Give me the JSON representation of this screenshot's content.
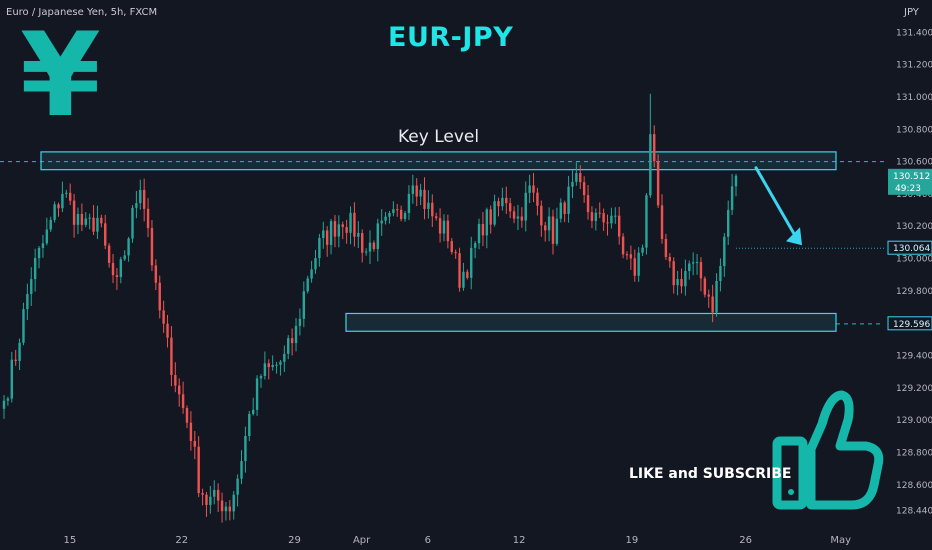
{
  "header": {
    "symbol": "Euro / Japanese Yen, 5h, FXCM",
    "currency": "JPY"
  },
  "annotations": {
    "title": "EUR-JPY",
    "key_level": "Key Level",
    "like": "LIKE and SUBSCRIBE",
    "yen_symbol": "¥"
  },
  "icons": [
    "yen-icon",
    "thumbs-up-icon",
    "arrow-down-right-icon"
  ],
  "colors": {
    "background": "#131722",
    "up": "#26a69a",
    "down": "#ef5350",
    "accent": "#1ee6e6",
    "icon": "#15b7ab",
    "zone_stroke": "#3ad5f0"
  },
  "chart_data": {
    "type": "candlestick",
    "title": "EUR-JPY",
    "ylim": [
      128.32,
      131.6
    ],
    "y_ticks": [
      "131.400",
      "131.200",
      "131.000",
      "130.800",
      "130.600",
      "130.400",
      "130.200",
      "130.000",
      "129.800",
      "129.600",
      "129.400",
      "129.200",
      "129.000",
      "128.800",
      "128.600",
      "128.440"
    ],
    "x_ticks": [
      {
        "label": "15",
        "pos": 0.075
      },
      {
        "label": "22",
        "pos": 0.195
      },
      {
        "label": "29",
        "pos": 0.316
      },
      {
        "label": "Apr",
        "pos": 0.388
      },
      {
        "label": "6",
        "pos": 0.459
      },
      {
        "label": "12",
        "pos": 0.557
      },
      {
        "label": "19",
        "pos": 0.678
      },
      {
        "label": "26",
        "pos": 0.8
      },
      {
        "label": "May",
        "pos": 0.902
      }
    ],
    "price_labels": [
      {
        "label": "130.512",
        "sub": "49:23",
        "value": 130.512,
        "kind": "current"
      },
      {
        "label": "130.064",
        "value": 130.064,
        "kind": "target"
      },
      {
        "label": "129.596",
        "value": 129.596,
        "kind": "support"
      }
    ],
    "zones": [
      {
        "name": "resistance",
        "from": 130.55,
        "to": 130.66
      },
      {
        "name": "support",
        "from": 129.55,
        "to": 129.66
      }
    ],
    "arrow": {
      "from": 130.5,
      "to": 130.07
    },
    "anchors": [
      [
        0,
        129.12
      ],
      [
        3,
        129.4
      ],
      [
        7,
        129.9
      ],
      [
        11,
        130.15
      ],
      [
        15,
        130.42
      ],
      [
        18,
        130.28
      ],
      [
        21,
        130.18
      ],
      [
        24,
        130.25
      ],
      [
        27,
        129.95
      ],
      [
        29,
        129.82
      ],
      [
        32,
        130.15
      ],
      [
        35,
        130.48
      ],
      [
        37,
        130.2
      ],
      [
        39,
        129.78
      ],
      [
        42,
        129.45
      ],
      [
        45,
        129.15
      ],
      [
        48,
        128.92
      ],
      [
        50,
        128.62
      ],
      [
        52,
        128.5
      ],
      [
        55,
        128.5
      ],
      [
        58,
        128.47
      ],
      [
        60,
        128.65
      ],
      [
        63,
        129.02
      ],
      [
        66,
        129.28
      ],
      [
        69,
        129.32
      ],
      [
        72,
        129.38
      ],
      [
        75,
        129.55
      ],
      [
        78,
        129.9
      ],
      [
        81,
        130.08
      ],
      [
        84,
        130.18
      ],
      [
        87,
        130.25
      ],
      [
        90,
        130.18
      ],
      [
        93,
        130.05
      ],
      [
        96,
        130.15
      ],
      [
        99,
        130.22
      ],
      [
        102,
        130.28
      ],
      [
        105,
        130.52
      ],
      [
        108,
        130.35
      ],
      [
        111,
        130.22
      ],
      [
        114,
        130.15
      ],
      [
        117,
        129.88
      ],
      [
        120,
        130.0
      ],
      [
        123,
        130.22
      ],
      [
        126,
        130.28
      ],
      [
        129,
        130.38
      ],
      [
        132,
        130.25
      ],
      [
        135,
        130.42
      ],
      [
        138,
        130.28
      ],
      [
        141,
        130.15
      ],
      [
        144,
        130.35
      ],
      [
        147,
        130.45
      ],
      [
        150,
        130.3
      ],
      [
        153,
        130.22
      ],
      [
        156,
        130.28
      ],
      [
        159,
        130.05
      ],
      [
        162,
        129.92
      ],
      [
        164,
        130.08
      ],
      [
        166,
        130.8
      ],
      [
        168,
        130.25
      ],
      [
        170,
        129.95
      ],
      [
        173,
        129.85
      ],
      [
        176,
        129.96
      ],
      [
        179,
        129.88
      ],
      [
        182,
        129.72
      ],
      [
        184,
        129.95
      ],
      [
        186,
        130.3
      ],
      [
        188,
        130.512
      ]
    ]
  }
}
